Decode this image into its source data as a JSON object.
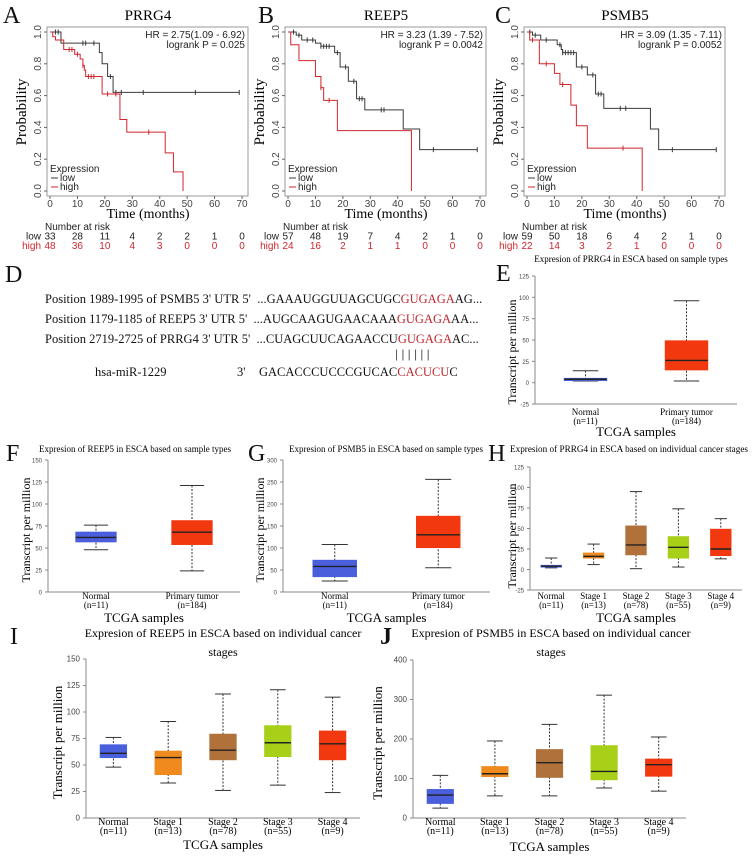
{
  "panel_letters": {
    "A": "A",
    "B": "B",
    "C": "C",
    "D": "D",
    "E": "E",
    "F": "F",
    "G": "G",
    "H": "H",
    "I": "I",
    "J": "J"
  },
  "panel_d": {
    "rows": [
      {
        "label": "Position 1989-1995 of PSMB5 3' UTR",
        "end": "5'",
        "prefix": "...GAAAUGGUUAGCUGC",
        "seed": "GUGAGA",
        "suffix": "AG..."
      },
      {
        "label": "Position 1179-1185 of REEP5  3' UTR",
        "end": "5'",
        "prefix": "...AUGCAAGUGAACAAA",
        "seed": "GUGAGA",
        "suffix": "AA..."
      },
      {
        "label": "Position 2719-2725 of PRRG4 3' UTR",
        "end": "5'",
        "prefix": "...CUAGCUUCAGAACCU",
        "seed": "GUGAGA",
        "suffix": "AC..."
      }
    ],
    "pairing_bars": "||||||",
    "mirna": {
      "label": "hsa-miR-1229",
      "end": "3'",
      "prefix": "GACACCCUCCCGUCAC",
      "seed": "CACUCU",
      "suffix": "C"
    }
  },
  "colors": {
    "low": "#3a3a3a",
    "high": "#d0262c",
    "normal": "#4a5fdc",
    "stage1": "#f08a1e",
    "stage2": "#b0713a",
    "stage3": "#a8d018",
    "tumor": "#f2380f",
    "seed": "#c0282e"
  },
  "chart_data": [
    {
      "type": "line",
      "title": "PRRG4",
      "xlabel": "Time (months)",
      "ylabel": "Probability",
      "xlim": [
        0,
        70
      ],
      "ylim": [
        0,
        1
      ],
      "xticks": [
        0,
        10,
        20,
        30,
        40,
        50,
        60,
        70
      ],
      "yticks": [
        "0.0",
        "0.2",
        "0.4",
        "0.6",
        "0.8",
        "1.0"
      ],
      "stats": [
        "HR = 2.75(1.09 - 6.92)",
        "logrank P = 0.025"
      ],
      "legend": {
        "title": "Expression",
        "entries": [
          "low",
          "high"
        ],
        "position": "bottom-left"
      },
      "series": [
        {
          "name": "low",
          "steps": [
            [
              4,
              0.93
            ],
            [
              18,
              0.87
            ],
            [
              19,
              0.8
            ],
            [
              21,
              0.72
            ],
            [
              23,
              0.62
            ]
          ],
          "end": 69,
          "censor": [
            2,
            3,
            12,
            13,
            16,
            22,
            24,
            26,
            34,
            53,
            69
          ]
        },
        {
          "name": "high",
          "steps": [
            [
              1,
              0.97
            ],
            [
              2,
              0.95
            ],
            [
              5,
              0.89
            ],
            [
              9,
              0.86
            ],
            [
              11,
              0.83
            ],
            [
              12,
              0.79
            ],
            [
              12.5,
              0.76
            ],
            [
              13,
              0.72
            ],
            [
              19,
              0.61
            ],
            [
              25.5,
              0.45
            ],
            [
              28,
              0.37
            ],
            [
              42,
              0.24
            ],
            [
              45,
              0.12
            ],
            [
              48.5,
              0
            ]
          ],
          "end": 48.5,
          "censor": [
            7,
            8,
            10,
            12,
            14,
            15,
            16,
            21,
            24,
            36
          ]
        }
      ],
      "risk": {
        "title": "Number at risk",
        "rows": [
          {
            "label": "low",
            "values": [
              33,
              28,
              11,
              4,
              2,
              2,
              1,
              0
            ]
          },
          {
            "label": "high",
            "values": [
              48,
              36,
              10,
              4,
              3,
              0,
              0,
              0
            ]
          }
        ]
      }
    },
    {
      "type": "line",
      "title": "REEP5",
      "xlabel": "Time (months)",
      "ylabel": "Probability",
      "xlim": [
        0,
        70
      ],
      "ylim": [
        0,
        1
      ],
      "xticks": [
        0,
        10,
        20,
        30,
        40,
        50,
        60,
        70
      ],
      "yticks": [
        "0.0",
        "0.2",
        "0.4",
        "0.6",
        "0.8",
        "1.0"
      ],
      "stats": [
        "HR = 3.23 (1.39 - 7.52)",
        "logrank P = 0.0042"
      ],
      "legend": {
        "title": "Expression",
        "entries": [
          "low",
          "high"
        ],
        "position": "bottom-left"
      },
      "series": [
        {
          "name": "low",
          "steps": [
            [
              3,
              0.98
            ],
            [
              5,
              0.95
            ],
            [
              10,
              0.93
            ],
            [
              12,
              0.91
            ],
            [
              17,
              0.87
            ],
            [
              19,
              0.78
            ],
            [
              22,
              0.69
            ],
            [
              25,
              0.58
            ],
            [
              28,
              0.51
            ],
            [
              42,
              0.39
            ],
            [
              48,
              0.26
            ]
          ],
          "end": 69,
          "censor": [
            2,
            4,
            7,
            9,
            12,
            13,
            14,
            15,
            18,
            21,
            24,
            26,
            27,
            34,
            35,
            53,
            69
          ]
        },
        {
          "name": "high",
          "steps": [
            [
              1,
              0.92
            ],
            [
              4,
              0.82
            ],
            [
              10,
              0.72
            ],
            [
              12,
              0.65
            ],
            [
              13,
              0.57
            ],
            [
              18,
              0.38
            ],
            [
              45,
              0
            ]
          ],
          "end": 45,
          "censor": [
            12,
            15
          ]
        }
      ],
      "risk": {
        "title": "Number at risk",
        "rows": [
          {
            "label": "low",
            "values": [
              57,
              48,
              19,
              7,
              4,
              2,
              1,
              0
            ]
          },
          {
            "label": "high",
            "values": [
              24,
              16,
              2,
              1,
              1,
              0,
              0,
              0
            ]
          }
        ]
      }
    },
    {
      "type": "line",
      "title": "PSMB5",
      "xlabel": "Time (months)",
      "ylabel": "Probability",
      "xlim": [
        0,
        70
      ],
      "ylim": [
        0,
        1
      ],
      "xticks": [
        0,
        10,
        20,
        30,
        40,
        50,
        60,
        70
      ],
      "yticks": [
        "0.0",
        "0.2",
        "0.4",
        "0.6",
        "0.8",
        "1.0"
      ],
      "stats": [
        "HR = 3.09 (1.35 - 7.11)",
        "logrank P = 0.0052"
      ],
      "legend": {
        "title": "Expression",
        "entries": [
          "low",
          "high"
        ],
        "position": "bottom-left"
      },
      "series": [
        {
          "name": "low",
          "steps": [
            [
              2,
              0.98
            ],
            [
              5,
              0.95
            ],
            [
              11,
              0.92
            ],
            [
              12.5,
              0.89
            ],
            [
              13,
              0.87
            ],
            [
              18,
              0.78
            ],
            [
              22,
              0.73
            ],
            [
              25,
              0.61
            ],
            [
              28,
              0.52
            ],
            [
              45,
              0.39
            ],
            [
              48,
              0.26
            ]
          ],
          "end": 69,
          "censor": [
            1,
            3,
            7,
            12,
            13,
            14,
            15,
            16,
            17,
            20,
            24,
            26,
            27,
            34,
            36,
            53,
            69
          ]
        },
        {
          "name": "high",
          "steps": [
            [
              1,
              0.95
            ],
            [
              4.5,
              0.8
            ],
            [
              10,
              0.74
            ],
            [
              12,
              0.67
            ],
            [
              16,
              0.54
            ],
            [
              18,
              0.41
            ],
            [
              22,
              0.27
            ],
            [
              42,
              0
            ]
          ],
          "end": 42,
          "censor": [
            2,
            7,
            13,
            35
          ]
        }
      ],
      "risk": {
        "title": "Number at risk",
        "rows": [
          {
            "label": "low",
            "values": [
              59,
              50,
              18,
              6,
              4,
              2,
              1,
              0
            ]
          },
          {
            "label": "high",
            "values": [
              22,
              14,
              3,
              2,
              1,
              0,
              0,
              0
            ]
          }
        ]
      }
    },
    {
      "type": "box",
      "title": [
        "Expresion of PRRG4 in ESCA based on sample types"
      ],
      "xlabel": "TCGA samples",
      "ylabel": "Transcript per million",
      "ylim": [
        -25,
        125
      ],
      "yticks": [
        -25,
        0,
        25,
        50,
        75,
        100,
        125
      ],
      "categories": [
        {
          "name": "Normal",
          "n": "(n=11)",
          "color": "#4a5fdc",
          "stats": [
            2,
            2.5,
            4,
            5,
            14
          ]
        },
        {
          "name": "Primary tumor",
          "n": "(n=184)",
          "color": "#f2380f",
          "stats": [
            2,
            15,
            26,
            49,
            96
          ]
        }
      ]
    },
    {
      "type": "box",
      "title": [
        "Expresion of REEP5 in ESCA based on sample types"
      ],
      "xlabel": "TCGA samples",
      "ylabel": "Transcript per million",
      "ylim": [
        0,
        150
      ],
      "yticks": [
        0,
        25,
        50,
        75,
        100,
        125,
        150
      ],
      "categories": [
        {
          "name": "Normal",
          "n": "(n=11)",
          "color": "#4a5fdc",
          "stats": [
            48,
            57,
            62,
            68,
            76
          ]
        },
        {
          "name": "Primary tumor",
          "n": "(n=184)",
          "color": "#f2380f",
          "stats": [
            24,
            54,
            68,
            81,
            121
          ]
        }
      ]
    },
    {
      "type": "box",
      "title": [
        "Expresion of PSMB5 in ESCA based on sample types"
      ],
      "xlabel": "TCGA samples",
      "ylabel": "Transcript per million",
      "ylim": [
        0,
        300
      ],
      "yticks": [
        0,
        50,
        100,
        150,
        200,
        250,
        300
      ],
      "categories": [
        {
          "name": "Normal",
          "n": "(n=11)",
          "color": "#4a5fdc",
          "stats": [
            25,
            35,
            58,
            72,
            108
          ]
        },
        {
          "name": "Primary tumor",
          "n": "(n=184)",
          "color": "#f2380f",
          "stats": [
            55,
            101,
            130,
            172,
            256
          ]
        }
      ]
    },
    {
      "type": "box",
      "title": [
        "Expresion of PRRG4 in ESCA based on individual cancer stages"
      ],
      "xlabel": "TCGA samples",
      "ylabel": "Transcript per million",
      "ylim": [
        -25,
        125
      ],
      "yticks": [
        -25,
        0,
        25,
        50,
        75,
        100,
        125
      ],
      "categories": [
        {
          "name": "Normal",
          "n": "(n=11)",
          "color": "#4a5fdc",
          "stats": [
            2,
            3,
            4,
            5,
            14
          ]
        },
        {
          "name": "Stage 1",
          "n": "(n=13)",
          "color": "#f08a1e",
          "stats": [
            6,
            14,
            16,
            20,
            31
          ]
        },
        {
          "name": "Stage 2",
          "n": "(n=78)",
          "color": "#b0713a",
          "stats": [
            1,
            18,
            30,
            53,
            95
          ]
        },
        {
          "name": "Stage 3",
          "n": "(n=55)",
          "color": "#a8d018",
          "stats": [
            3,
            14,
            27,
            40,
            74
          ]
        },
        {
          "name": "Stage 4",
          "n": "(n=9)",
          "color": "#f2380f",
          "stats": [
            13,
            17,
            25,
            49,
            62
          ]
        }
      ]
    },
    {
      "type": "box",
      "title": [
        "Expresion of REEP5 in ESCA based on individual cancer",
        "stages"
      ],
      "xlabel": "TCGA samples",
      "ylabel": "Transcript per million",
      "ylim": [
        0,
        150
      ],
      "yticks": [
        0,
        25,
        50,
        75,
        100,
        125,
        150
      ],
      "categories": [
        {
          "name": "Normal",
          "n": "(n=11)",
          "color": "#4a5fdc",
          "stats": [
            48,
            57,
            61,
            69,
            76
          ]
        },
        {
          "name": "Stage 1",
          "n": "(n=13)",
          "color": "#f08a1e",
          "stats": [
            33,
            41,
            57,
            63,
            91
          ]
        },
        {
          "name": "Stage 2",
          "n": "(n=78)",
          "color": "#b0713a",
          "stats": [
            26,
            55,
            64,
            79,
            117
          ]
        },
        {
          "name": "Stage 3",
          "n": "(n=55)",
          "color": "#a8d018",
          "stats": [
            31,
            58,
            71,
            87,
            121
          ]
        },
        {
          "name": "Stage 4",
          "n": "(n=9)",
          "color": "#f2380f",
          "stats": [
            24,
            55,
            70,
            82,
            114
          ]
        }
      ]
    },
    {
      "type": "box",
      "title": [
        "Expresion of PSMB5 in ESCA based on individual cancer",
        "stages"
      ],
      "xlabel": "TCGA samples",
      "ylabel": "Transcript per million",
      "ylim": [
        0,
        400
      ],
      "yticks": [
        0,
        100,
        200,
        300,
        400
      ],
      "categories": [
        {
          "name": "Normal",
          "n": "(n=11)",
          "color": "#4a5fdc",
          "stats": [
            25,
            37,
            58,
            72,
            108
          ]
        },
        {
          "name": "Stage 1",
          "n": "(n=13)",
          "color": "#f08a1e",
          "stats": [
            56,
            105,
            112,
            130,
            195
          ]
        },
        {
          "name": "Stage 2",
          "n": "(n=78)",
          "color": "#b0713a",
          "stats": [
            56,
            103,
            140,
            173,
            237
          ]
        },
        {
          "name": "Stage 3",
          "n": "(n=55)",
          "color": "#a8d018",
          "stats": [
            76,
            97,
            118,
            183,
            311
          ]
        },
        {
          "name": "Stage 4",
          "n": "(n=9)",
          "color": "#f2380f",
          "stats": [
            68,
            106,
            135,
            149,
            205
          ]
        }
      ]
    }
  ]
}
